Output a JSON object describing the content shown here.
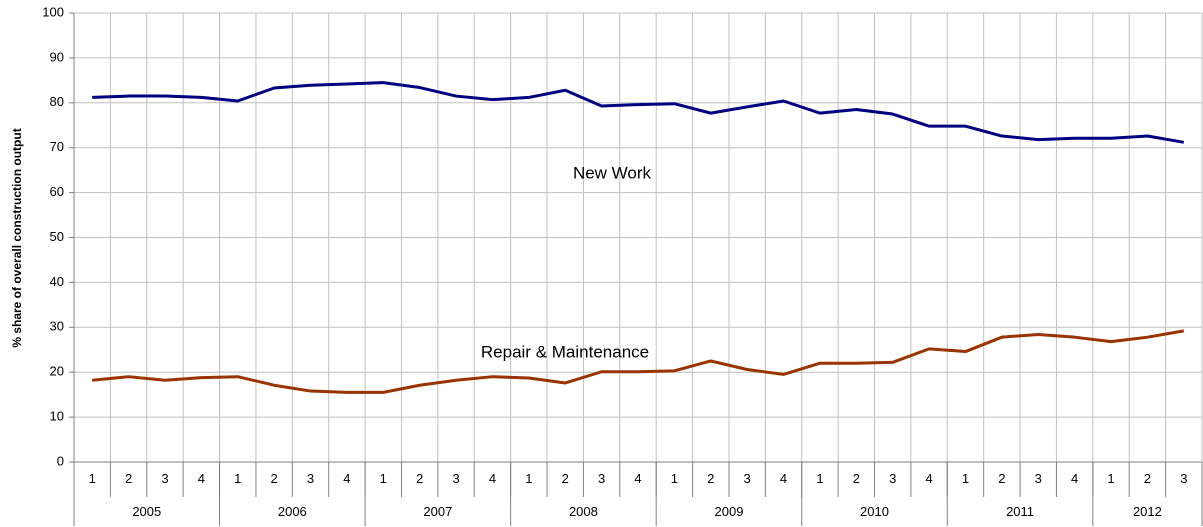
{
  "chart_data": {
    "type": "line",
    "y_label": "% share of overall construction output",
    "groups": [
      {
        "name": "2005",
        "categories": [
          "1",
          "2",
          "3",
          "4"
        ]
      },
      {
        "name": "2006",
        "categories": [
          "1",
          "2",
          "3",
          "4"
        ]
      },
      {
        "name": "2007",
        "categories": [
          "1",
          "2",
          "3",
          "4"
        ]
      },
      {
        "name": "2008",
        "categories": [
          "1",
          "2",
          "3",
          "4"
        ]
      },
      {
        "name": "2009",
        "categories": [
          "1",
          "2",
          "3",
          "4"
        ]
      },
      {
        "name": "2010",
        "categories": [
          "1",
          "2",
          "3",
          "4"
        ]
      },
      {
        "name": "2011",
        "categories": [
          "1",
          "2",
          "3",
          "4"
        ]
      },
      {
        "name": "2012",
        "categories": [
          "1",
          "2",
          "3"
        ]
      }
    ],
    "series": [
      {
        "name": "New Work",
        "color": "#000080",
        "values": [
          81.2,
          81.5,
          81.5,
          81.2,
          80.4,
          83.3,
          83.9,
          84.2,
          84.5,
          83.4,
          81.5,
          80.7,
          81.2,
          82.8,
          79.3,
          79.6,
          79.8,
          77.7,
          79.1,
          80.4,
          77.7,
          78.5,
          77.5,
          74.8,
          74.8,
          72.6,
          71.8,
          72.1,
          72.1,
          72.6,
          71.2
        ]
      },
      {
        "name": "Repair & Maintenance",
        "color": "#993300",
        "values": [
          18.2,
          19.0,
          18.2,
          18.8,
          19.0,
          17.1,
          15.8,
          15.5,
          15.5,
          17.1,
          18.2,
          19.0,
          18.7,
          17.6,
          20.1,
          20.1,
          20.3,
          22.5,
          20.6,
          19.5,
          22.0,
          22.0,
          22.2,
          25.2,
          24.6,
          27.8,
          28.4,
          27.8,
          26.8,
          27.8,
          29.2
        ]
      }
    ],
    "ylim": [
      0,
      100
    ],
    "yticks": [
      0,
      10,
      20,
      30,
      40,
      50,
      60,
      70,
      80,
      90,
      100
    ],
    "grid": true
  }
}
